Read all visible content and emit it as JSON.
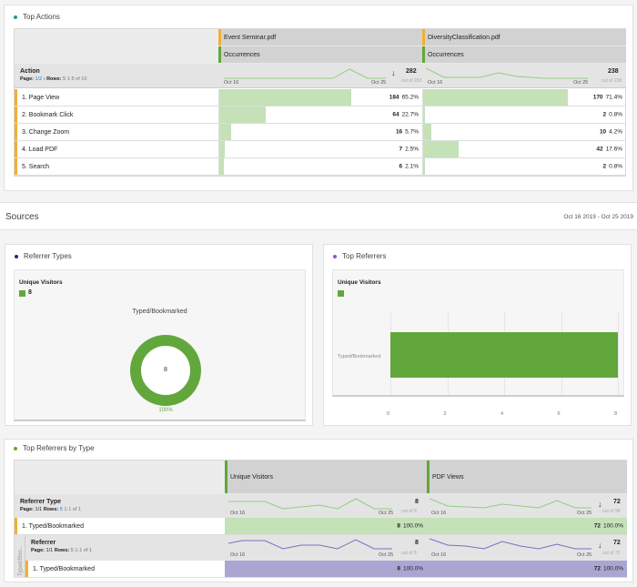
{
  "top_actions": {
    "title": "Top Actions",
    "columns": [
      {
        "file": "Event Seminar.pdf",
        "metric": "Occurrences",
        "total": "282",
        "out_of": "out of 282",
        "start": "Oct 16",
        "end": "Oct 25"
      },
      {
        "file": "DiversityClassification.pdf",
        "metric": "Occurrences",
        "total": "238",
        "out_of": "out of 238",
        "start": "Oct 16",
        "end": "Oct 25"
      }
    ],
    "dimension": "Action",
    "page_label": "Page:",
    "page": "1/2",
    "rows_label": "Rows:",
    "rows": "5",
    "range": "1-5 of 10",
    "rows_data": [
      {
        "label": "1. Page View",
        "v1": "184",
        "p1": "65.2%",
        "f1": 65.2,
        "v2": "170",
        "p2": "71.4%",
        "f2": 71.4
      },
      {
        "label": "2. Bookmark Click",
        "v1": "64",
        "p1": "22.7%",
        "f1": 22.7,
        "v2": "2",
        "p2": "0.8%",
        "f2": 0.8
      },
      {
        "label": "3. Change Zoom",
        "v1": "16",
        "p1": "5.7%",
        "f1": 5.7,
        "v2": "10",
        "p2": "4.2%",
        "f2": 4.2
      },
      {
        "label": "4. Load PDF",
        "v1": "7",
        "p1": "2.5%",
        "f1": 2.5,
        "v2": "42",
        "p2": "17.6%",
        "f2": 17.6
      },
      {
        "label": "5. Search",
        "v1": "6",
        "p1": "2.1%",
        "f1": 2.1,
        "v2": "2",
        "p2": "0.8%",
        "f2": 0.8
      }
    ]
  },
  "sources": {
    "title": "Sources",
    "date_range": "Oct 16 2019 - Oct 25 2019"
  },
  "referrer_types": {
    "title": "Referrer Types",
    "metric": "Unique Visitors",
    "legend_value": "8",
    "category": "Typed/Bookmarked",
    "center_value": "8",
    "percent": "100%",
    "color": "#62a73b"
  },
  "top_referrers": {
    "title": "Top Referrers",
    "metric": "Unique Visitors",
    "category": "Typed/Bookmarked",
    "value": 8,
    "ticks": [
      "0",
      "2",
      "4",
      "6",
      "8"
    ],
    "max": 8
  },
  "by_type": {
    "title": "Top Referrers by Type",
    "columns": [
      "Unique Visitors",
      "PDF Views"
    ],
    "dim1": {
      "name": "Referrer Type",
      "page_label": "Page:",
      "page": "1/1",
      "rows_label": "Rows:",
      "rows": "5",
      "range": "1-1 of 1",
      "t1": "8",
      "o1": "out of 9",
      "t2": "72",
      "o2": "out of 98",
      "start": "Oct 16",
      "end": "Oct 25"
    },
    "row1": {
      "label": "1. Typed/Bookmarked",
      "v1": "8",
      "p1": "100.0%",
      "v2": "72",
      "p2": "100.0%"
    },
    "side_label": "Typed/Boo...",
    "dim2": {
      "name": "Referrer",
      "page_label": "Page:",
      "page": "1/1",
      "rows_label": "Rows:",
      "rows": "5",
      "range": "1-1 of 1",
      "t1": "8",
      "o1": "out of 8",
      "t2": "72",
      "o2": "out of 72",
      "start": "Oct 16",
      "end": "Oct 25"
    },
    "row2": {
      "label": "1. Typed/Bookmarked",
      "v1": "8",
      "p1": "100.0%",
      "v2": "72",
      "p2": "100.0%"
    }
  }
}
